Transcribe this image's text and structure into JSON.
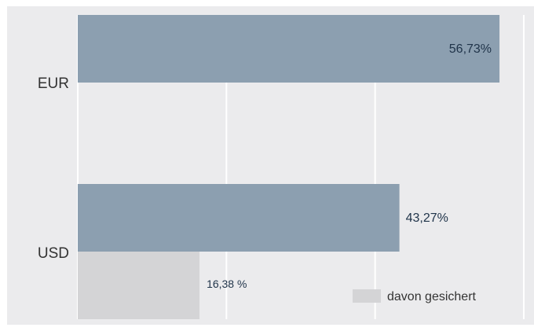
{
  "colors": {
    "plot_background": "#ebebed",
    "gridline": "#ffffff",
    "bar_total": "#8c9fb0",
    "bar_hedged": "#d4d4d6",
    "text_dark": "#1f3349",
    "text_axis": "#333333"
  },
  "chart_data": {
    "type": "bar",
    "orientation": "horizontal",
    "categories": [
      "EUR",
      "USD"
    ],
    "series": [
      {
        "values": [
          56.73,
          43.27
        ],
        "labels": [
          "56,73%",
          "43,27%"
        ],
        "color": "#8c9fb0"
      },
      {
        "name": "davon gesichert",
        "values": [
          null,
          16.38
        ],
        "labels": [
          null,
          "16,38 %"
        ],
        "color": "#d4d4d6"
      }
    ],
    "xlim": [
      0,
      60
    ],
    "x_gridlines": [
      20,
      40,
      60
    ],
    "grid": true,
    "legend": {
      "position": "bottom-right",
      "entries": [
        "davon gesichert"
      ]
    }
  }
}
